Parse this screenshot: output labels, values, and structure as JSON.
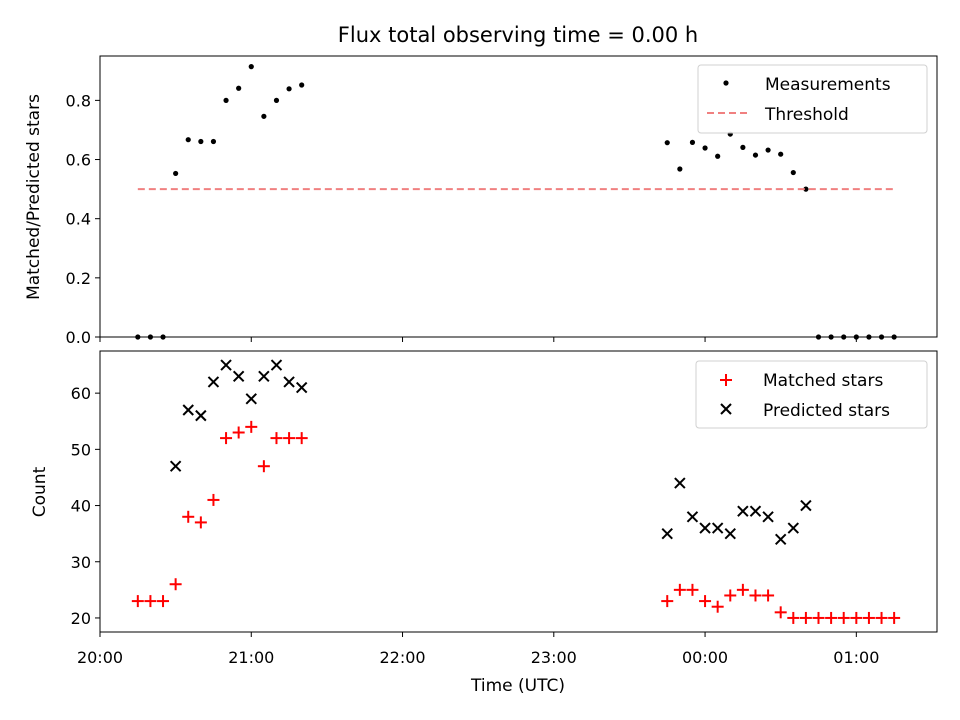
{
  "chart_data": [
    {
      "type": "scatter",
      "title": "Flux total observing time = 0.00 h",
      "xlabel": "",
      "ylabel": "Matched/Predicted stars",
      "ylim": [
        0.0,
        0.95
      ],
      "yticks": [
        0.0,
        0.2,
        0.4,
        0.6,
        0.8
      ],
      "ytick_labels": [
        "0.0",
        "0.2",
        "0.4",
        "0.6",
        "0.8"
      ],
      "legend_position": "top-right",
      "series": [
        {
          "name": "Measurements",
          "marker": "dot",
          "color": "#000000",
          "x": [
            "20:15",
            "20:20",
            "20:25",
            "20:30",
            "20:35",
            "20:40",
            "20:45",
            "20:50",
            "20:55",
            "21:00",
            "21:05",
            "21:10",
            "21:15",
            "21:20",
            "23:45",
            "23:50",
            "23:55",
            "00:00",
            "00:05",
            "00:10",
            "00:15",
            "00:20",
            "00:25",
            "00:30",
            "00:35",
            "00:40",
            "00:45",
            "00:50",
            "00:55",
            "01:00",
            "01:05",
            "01:10",
            "01:15"
          ],
          "y": [
            0.0,
            0.0,
            0.0,
            0.553,
            0.667,
            0.661,
            0.661,
            0.8,
            0.841,
            0.914,
            0.746,
            0.8,
            0.839,
            0.852,
            0.657,
            0.568,
            0.658,
            0.639,
            0.611,
            0.686,
            0.641,
            0.615,
            0.632,
            0.618,
            0.556,
            0.5,
            0.0,
            0.0,
            0.0,
            0.0,
            0.0,
            0.0,
            0.0
          ]
        },
        {
          "name": "Threshold",
          "line": "dashed",
          "color": "#f08080",
          "x": [
            "20:15",
            "01:15"
          ],
          "y": [
            0.5,
            0.5
          ]
        }
      ]
    },
    {
      "type": "scatter",
      "xlabel": "Time (UTC)",
      "ylabel": "Count",
      "ylim": [
        17.5,
        67.5
      ],
      "yticks": [
        20,
        30,
        40,
        50,
        60
      ],
      "ytick_labels": [
        "20",
        "30",
        "40",
        "50",
        "60"
      ],
      "xticks": [
        "20:00",
        "21:00",
        "22:00",
        "23:00",
        "00:00",
        "01:00"
      ],
      "xlim": [
        "20:00",
        "01:32"
      ],
      "legend_position": "top-right",
      "series": [
        {
          "name": "Matched stars",
          "marker": "plus",
          "color": "#ff0000",
          "x": [
            "20:15",
            "20:20",
            "20:25",
            "20:30",
            "20:35",
            "20:40",
            "20:45",
            "20:50",
            "20:55",
            "21:00",
            "21:05",
            "21:10",
            "21:15",
            "21:20",
            "23:45",
            "23:50",
            "23:55",
            "00:00",
            "00:05",
            "00:10",
            "00:15",
            "00:20",
            "00:25",
            "00:30",
            "00:35",
            "00:40",
            "00:45",
            "00:50",
            "00:55",
            "01:00",
            "01:05",
            "01:10",
            "01:15"
          ],
          "y": [
            23,
            23,
            23,
            26,
            38,
            37,
            41,
            52,
            53,
            54,
            47,
            52,
            52,
            52,
            23,
            25,
            25,
            23,
            22,
            24,
            25,
            24,
            24,
            21,
            20,
            20,
            20,
            20,
            20,
            20,
            20,
            20,
            20
          ]
        },
        {
          "name": "Predicted stars",
          "marker": "x",
          "color": "#000000",
          "x": [
            "20:30",
            "20:35",
            "20:40",
            "20:45",
            "20:50",
            "20:55",
            "21:00",
            "21:05",
            "21:10",
            "21:15",
            "21:20",
            "23:45",
            "23:50",
            "23:55",
            "00:00",
            "00:05",
            "00:10",
            "00:15",
            "00:20",
            "00:25",
            "00:30",
            "00:35",
            "00:40"
          ],
          "y": [
            47,
            57,
            56,
            62,
            65,
            63,
            59,
            63,
            65,
            62,
            61,
            35,
            44,
            38,
            36,
            36,
            35,
            39,
            39,
            38,
            34,
            36,
            40
          ]
        }
      ]
    }
  ]
}
